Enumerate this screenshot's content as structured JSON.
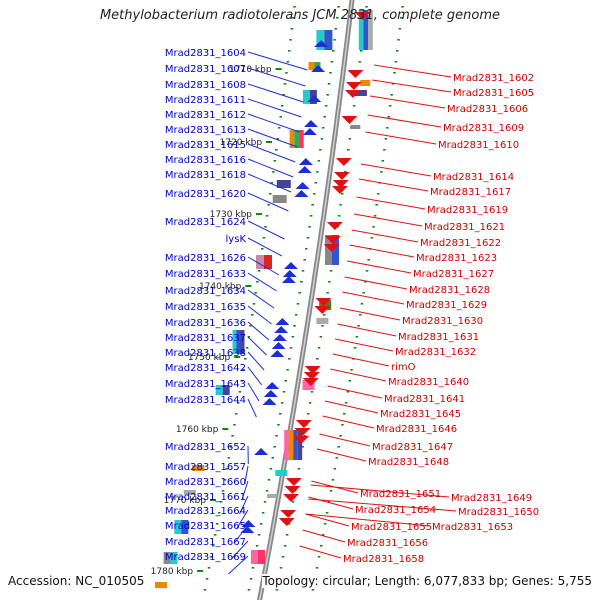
{
  "title": "Methylobacterium radiotolerans JCM 2831, complete genome",
  "accession_text": "Accession: NC_010505",
  "topology_text": "Topology: circular; Length: 6,077,833 bp; Genes: 5,755",
  "colors": {
    "left_label": "#0000cc",
    "right_label": "#cc0000",
    "backbone": "#888888",
    "tick": "#118811",
    "kbp_text": "#222222"
  },
  "kbp_marks": [
    "1710 kbp",
    "1720 kbp",
    "1730 kbp",
    "1740 kbp",
    "1750 kbp",
    "1760 kbp",
    "1770 kbp",
    "1780 kbp"
  ],
  "left_labels": [
    "Mrad2831_1604",
    "Mrad2831_1607",
    "Mrad2831_1608",
    "Mrad2831_1611",
    "Mrad2831_1612",
    "Mrad2831_1613",
    "Mrad2831_1615",
    "Mrad2831_1616",
    "Mrad2831_1618",
    "Mrad2831_1620",
    "Mrad2831_1624",
    "lysK",
    "Mrad2831_1626",
    "Mrad2831_1633",
    "Mrad2831_1634",
    "Mrad2831_1635",
    "Mrad2831_1636",
    "Mrad2831_1637",
    "Mrad2831_1638",
    "Mrad2831_1642",
    "Mrad2831_1643",
    "Mrad2831_1644",
    "Mrad2831_1652",
    "Mrad2831_1657",
    "Mrad2831_1660",
    "Mrad2831_1661",
    "Mrad2831_1664",
    "Mrad2831_1665",
    "Mrad2831_1667",
    "Mrad2831_1669"
  ],
  "right_labels": [
    "Mrad2831_1602",
    "Mrad2831_1605",
    "Mrad2831_1606",
    "Mrad2831_1609",
    "Mrad2831_1610",
    "Mrad2831_1614",
    "Mrad2831_1617",
    "Mrad2831_1619",
    "Mrad2831_1621",
    "Mrad2831_1622",
    "Mrad2831_1623",
    "Mrad2831_1627",
    "Mrad2831_1628",
    "Mrad2831_1629",
    "Mrad2831_1630",
    "Mrad2831_1631",
    "Mrad2831_1632",
    "rimO",
    "Mrad2831_1640",
    "Mrad2831_1641",
    "Mrad2831_1645",
    "Mrad2831_1646",
    "Mrad2831_1647",
    "Mrad2831_1648",
    "Mrad2831_1651",
    "Mrad2831_1649",
    "Mrad2831_1654",
    "Mrad2831_1650",
    "Mrad2831_1655",
    "Mrad2831_1653",
    "Mrad2831_1656",
    "Mrad2831_1658"
  ]
}
